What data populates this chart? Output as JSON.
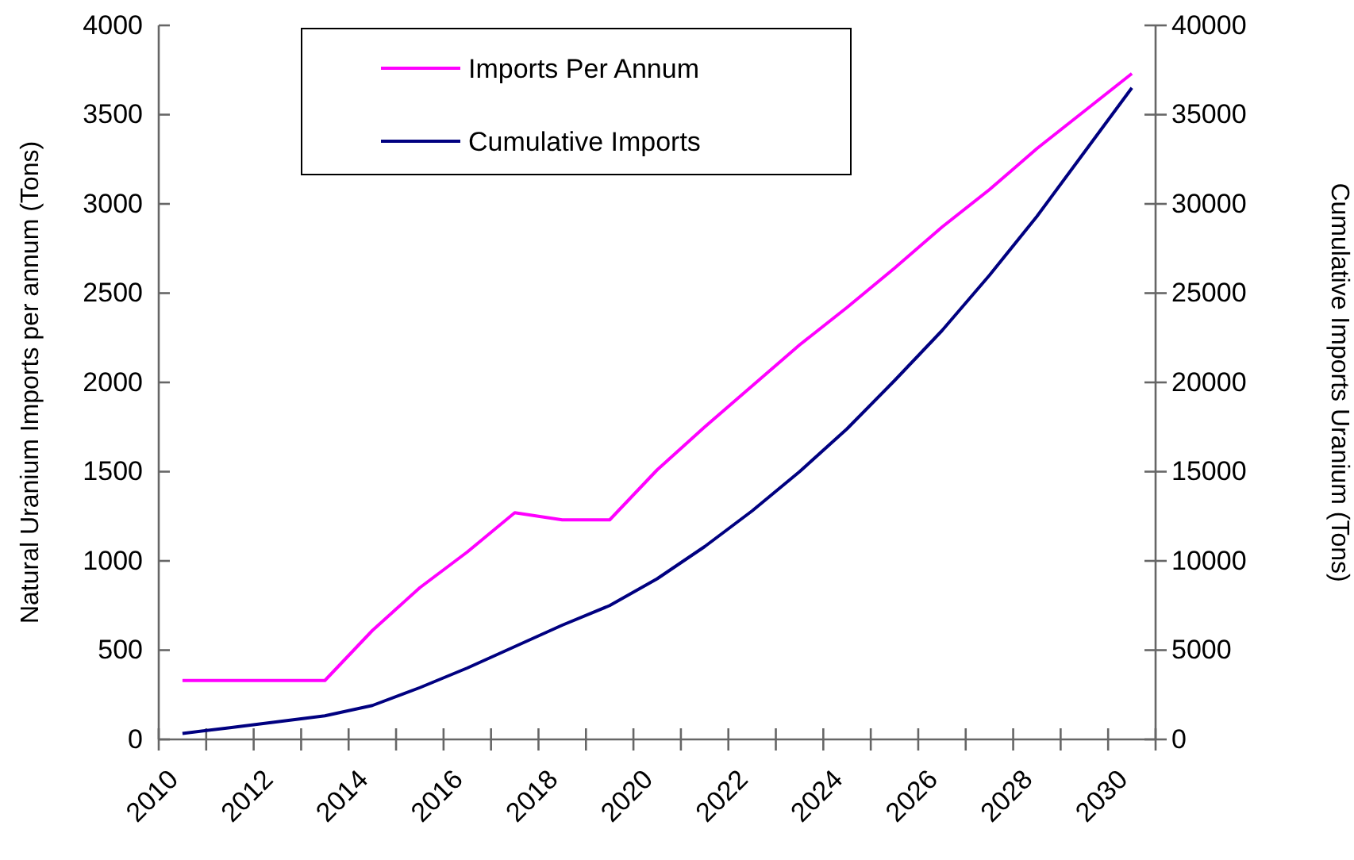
{
  "chart_data": {
    "type": "line",
    "ylabel": "Natural Uranium Imports per annum (Tons)",
    "y2label": "Cumulative Imports Uranium (Tons)",
    "categories": [
      "2010",
      null,
      "2012",
      null,
      "2014",
      null,
      "2016",
      null,
      "2018",
      null,
      "2020",
      null,
      "2022",
      null,
      "2024",
      null,
      "2026",
      null,
      "2028",
      null,
      "2030"
    ],
    "series": [
      {
        "name": "Imports Per Annum",
        "color": "#ff00ff",
        "values": [
          330,
          330,
          330,
          330,
          610,
          850,
          1050,
          1270,
          1230,
          1230,
          1510,
          1750,
          1980,
          2210,
          2420,
          2640,
          2870,
          3080,
          3310,
          3520,
          3730
        ]
      },
      {
        "name": "Cumulative Imports",
        "color": "#000080",
        "axis": "y2",
        "values": [
          330,
          660,
          990,
          1320,
          1900,
          2900,
          4000,
          5200,
          6400,
          7500,
          9000,
          10800,
          12800,
          15000,
          17400,
          20100,
          22900,
          26000,
          29300,
          32900,
          36500
        ]
      }
    ],
    "ylim": [
      0,
      4000
    ],
    "yticks": [
      0,
      500,
      1000,
      1500,
      2000,
      2500,
      3000,
      3500,
      4000
    ],
    "y2lim": [
      0,
      40000
    ],
    "y2ticks": [
      0,
      5000,
      10000,
      15000,
      20000,
      25000,
      30000,
      35000,
      40000
    ],
    "legend": "top",
    "grid": false,
    "marker": "none",
    "line_style": "solid"
  }
}
